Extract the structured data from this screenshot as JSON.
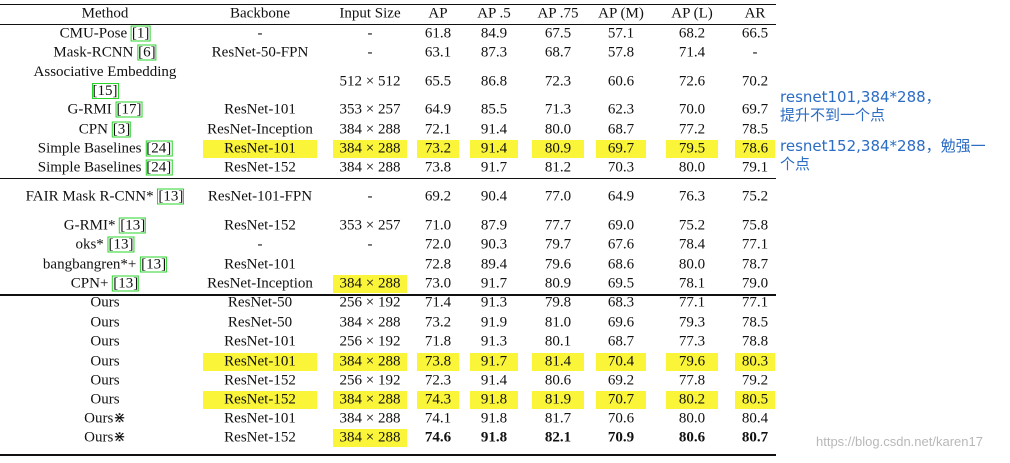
{
  "table": {
    "headers": [
      "Method",
      "Backbone",
      "Input Size",
      "AP",
      "AP .5",
      "AP .75",
      "AP (M)",
      "AP (L)",
      "AR"
    ],
    "rows": [
      {
        "method": "CMU-Pose [1]",
        "backbone": "-",
        "input": "-",
        "ap": "61.8",
        "ap50": "84.9",
        "ap75": "67.5",
        "apm": "57.1",
        "apl": "68.2",
        "ar": "66.5"
      },
      {
        "method": "Mask-RCNN [6]",
        "backbone": "ResNet-50-FPN",
        "input": "-",
        "ap": "63.1",
        "ap50": "87.3",
        "ap75": "68.7",
        "apm": "57.8",
        "apl": "71.4",
        "ar": "-"
      },
      {
        "method": "Associative Embedding [15]",
        "backbone": "",
        "input": "512 × 512",
        "ap": "65.5",
        "ap50": "86.8",
        "ap75": "72.3",
        "apm": "60.6",
        "apl": "72.6",
        "ar": "70.2"
      },
      {
        "method": "G-RMI [17]",
        "backbone": "ResNet-101",
        "input": "353 × 257",
        "ap": "64.9",
        "ap50": "85.5",
        "ap75": "71.3",
        "apm": "62.3",
        "apl": "70.0",
        "ar": "69.7"
      },
      {
        "method": "CPN [3]",
        "backbone": "ResNet-Inception",
        "input": "384 × 288",
        "ap": "72.1",
        "ap50": "91.4",
        "ap75": "80.0",
        "apm": "68.7",
        "apl": "77.2",
        "ar": "78.5"
      },
      {
        "method": "Simple Baselines [24]",
        "backbone": "ResNet-101",
        "input": "384 × 288",
        "ap": "73.2",
        "ap50": "91.4",
        "ap75": "80.9",
        "apm": "69.7",
        "apl": "79.5",
        "ar": "78.6"
      },
      {
        "method": "Simple Baselines [24]",
        "backbone": "ResNet-152",
        "input": "384 × 288",
        "ap": "73.8",
        "ap50": "91.7",
        "ap75": "81.2",
        "apm": "70.3",
        "apl": "80.0",
        "ar": "79.1"
      },
      {
        "method": "FAIR Mask R-CNN* [13]",
        "backbone": "ResNet-101-FPN",
        "input": "-",
        "ap": "69.2",
        "ap50": "90.4",
        "ap75": "77.0",
        "apm": "64.9",
        "apl": "76.3",
        "ar": "75.2"
      },
      {
        "method": "G-RMI* [13]",
        "backbone": "ResNet-152",
        "input": "353 × 257",
        "ap": "71.0",
        "ap50": "87.9",
        "ap75": "77.7",
        "apm": "69.0",
        "apl": "75.2",
        "ar": "75.8"
      },
      {
        "method": "oks* [13]",
        "backbone": "-",
        "input": "-",
        "ap": "72.0",
        "ap50": "90.3",
        "ap75": "79.7",
        "apm": "67.6",
        "apl": "78.4",
        "ar": "77.1"
      },
      {
        "method": "bangbangren*+ [13]",
        "backbone": "ResNet-101",
        "input": "",
        "ap": "72.8",
        "ap50": "89.4",
        "ap75": "79.6",
        "apm": "68.6",
        "apl": "80.0",
        "ar": "78.7"
      },
      {
        "method": "CPN+ [13]",
        "backbone": "ResNet-Inception",
        "input": "384 × 288",
        "ap": "73.0",
        "ap50": "91.7",
        "ap75": "80.9",
        "apm": "69.5",
        "apl": "78.1",
        "ar": "79.0"
      },
      {
        "method": "Ours",
        "backbone": "ResNet-50",
        "input": "256 × 192",
        "ap": "71.4",
        "ap50": "91.3",
        "ap75": "79.8",
        "apm": "68.3",
        "apl": "77.1",
        "ar": "77.1"
      },
      {
        "method": "Ours",
        "backbone": "ResNet-50",
        "input": "384 × 288",
        "ap": "73.2",
        "ap50": "91.9",
        "ap75": "81.0",
        "apm": "69.6",
        "apl": "79.3",
        "ar": "78.5"
      },
      {
        "method": "Ours",
        "backbone": "ResNet-101",
        "input": "256 × 192",
        "ap": "71.8",
        "ap50": "91.3",
        "ap75": "80.1",
        "apm": "68.7",
        "apl": "77.3",
        "ar": "78.8"
      },
      {
        "method": "Ours",
        "backbone": "ResNet-101",
        "input": "384 × 288",
        "ap": "73.8",
        "ap50": "91.7",
        "ap75": "81.4",
        "apm": "70.4",
        "apl": "79.6",
        "ar": "80.3"
      },
      {
        "method": "Ours",
        "backbone": "ResNet-152",
        "input": "256 × 192",
        "ap": "72.3",
        "ap50": "91.4",
        "ap75": "80.6",
        "apm": "69.2",
        "apl": "77.8",
        "ar": "79.2"
      },
      {
        "method": "Ours",
        "backbone": "ResNet-152",
        "input": "384 × 288",
        "ap": "74.3",
        "ap50": "91.8",
        "ap75": "81.9",
        "apm": "70.7",
        "apl": "80.2",
        "ar": "80.5"
      },
      {
        "method": "Ours⋇",
        "backbone": "ResNet-101",
        "input": "384 × 288",
        "ap": "74.1",
        "ap50": "91.8",
        "ap75": "81.7",
        "apm": "70.6",
        "apl": "80.0",
        "ar": "80.4"
      },
      {
        "method": "Ours⋇",
        "backbone": "ResNet-152",
        "input": "384 × 288",
        "ap": "74.6",
        "ap50": "91.8",
        "ap75": "82.1",
        "apm": "70.9",
        "apl": "80.6",
        "ar": "80.7"
      }
    ]
  },
  "annotations": {
    "note1_line1": "resnet101,384*288，",
    "note1_line2": "提升不到一个点",
    "note2_line1": "resnet152,384*288，勉强一",
    "note2_line2": "个点"
  },
  "watermark": "https://blog.csdn.net/karen17",
  "colors": {
    "highlight": "#fbf53a",
    "annotation": "#2b6cc4",
    "citation_box": "#2bd42b"
  }
}
